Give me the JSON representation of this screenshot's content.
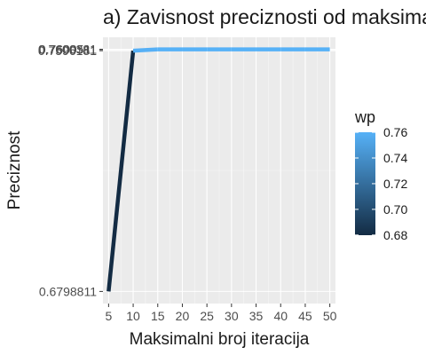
{
  "chart_data": {
    "type": "line",
    "title": "a) Zavisnost preciznosti od maksimalnog broja iteracija",
    "xlabel": "Maksimalni broj iteracija",
    "ylabel": "Preciznost",
    "x": [
      5,
      10,
      15,
      20,
      25,
      30,
      35,
      40,
      45,
      50
    ],
    "series": [
      {
        "name": "",
        "values": [
          0.6798811,
          0.7596181,
          0.7600381,
          0.7600381,
          0.7600381,
          0.7600381,
          0.7600381,
          0.7600381,
          0.7600381,
          0.7600381
        ]
      }
    ],
    "xticks": [
      "5",
      "10",
      "15",
      "20",
      "25",
      "30",
      "35",
      "40",
      "45",
      "50"
    ],
    "yticks": [
      {
        "value": 0.6798811,
        "label": "0.6798811"
      },
      {
        "value": 0.7596181,
        "label": "0.7596181"
      },
      {
        "value": 0.7600381,
        "label": "0.7600381"
      },
      {
        "value": 0.7600511,
        "label": "0.7600511"
      }
    ],
    "xlim": [
      3.85,
      51.15
    ],
    "ylim": [
      0.6758801,
      0.7640521
    ],
    "grid": true,
    "color_scale": {
      "title": "wp",
      "low_color": "#132B43",
      "high_color": "#56B1F7",
      "range": [
        0.6798811,
        0.7600511
      ],
      "ticks": [
        {
          "value": 0.68,
          "label": "0.68"
        },
        {
          "value": 0.7,
          "label": "0.70"
        },
        {
          "value": 0.72,
          "label": "0.72"
        },
        {
          "value": 0.74,
          "label": "0.74"
        },
        {
          "value": 0.76,
          "label": "0.76"
        }
      ]
    },
    "legend_position": "right"
  }
}
